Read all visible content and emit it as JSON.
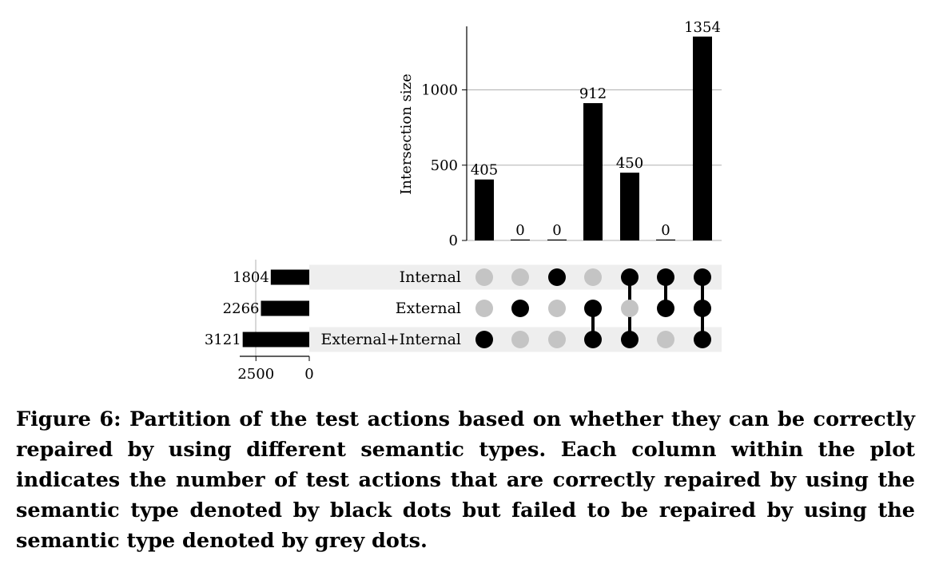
{
  "chart_data": {
    "type": "bar",
    "subtype": "upset",
    "ylabel": "Intersection size",
    "yticks": [
      0,
      500,
      1000
    ],
    "ylim": [
      0,
      1400
    ],
    "set_size_ticks": [
      "2500",
      "0"
    ],
    "set_size_xlim": [
      3300,
      0
    ],
    "sets": [
      {
        "name": "Internal",
        "size": 1804
      },
      {
        "name": "External",
        "size": 2266
      },
      {
        "name": "External+Internal",
        "size": 3121
      }
    ],
    "intersections": [
      {
        "value": 405,
        "members": [
          false,
          false,
          true
        ]
      },
      {
        "value": 0,
        "members": [
          false,
          true,
          false
        ]
      },
      {
        "value": 0,
        "members": [
          true,
          false,
          false
        ]
      },
      {
        "value": 912,
        "members": [
          false,
          true,
          true
        ]
      },
      {
        "value": 450,
        "members": [
          true,
          false,
          true
        ]
      },
      {
        "value": 0,
        "members": [
          true,
          true,
          false
        ]
      },
      {
        "value": 1354,
        "members": [
          true,
          true,
          true
        ]
      }
    ],
    "grid": true,
    "colors": {
      "bar": "#000000",
      "active_dot": "#000000",
      "inactive_dot": "#c4c4c4",
      "row_shade": "#eeeeee",
      "grid": "#b0b0b0"
    }
  },
  "caption": "Figure 6: Partition of the test actions based on whether they can be correctly repaired by using different semantic types. Each column within the plot indicates the number of test actions that are correctly repaired by using the semantic type denoted by black dots but failed to be repaired by using the semantic type denoted by grey dots."
}
